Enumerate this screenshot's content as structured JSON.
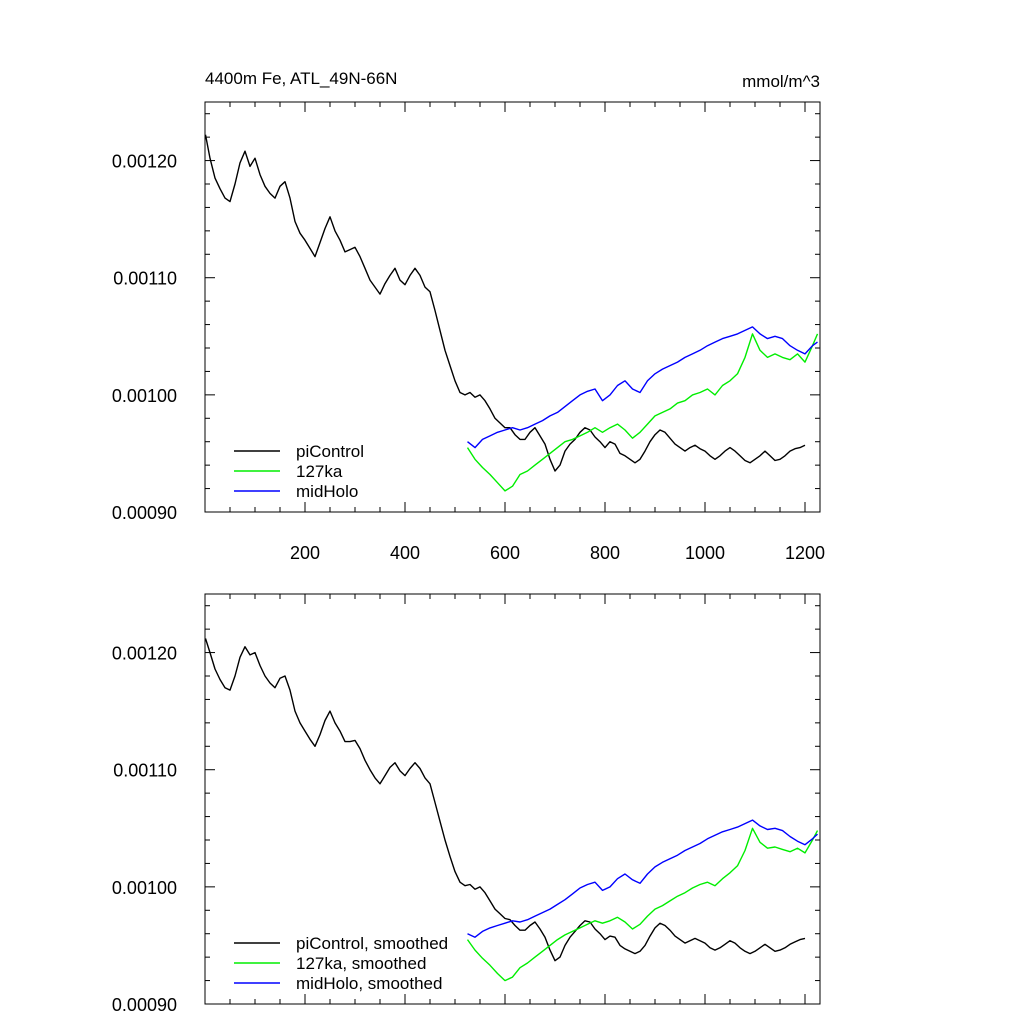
{
  "chart_data": [
    {
      "type": "line",
      "title": "4400m Fe, ATL_49N-66N",
      "units": "mmol/m^3",
      "xlim": [
        0,
        1230
      ],
      "ylim": [
        0.0009,
        0.00125
      ],
      "xticks": [
        200,
        400,
        600,
        800,
        1000,
        1200
      ],
      "xtick_labels": [
        "200",
        "400",
        "600",
        "800",
        "1000",
        "1200"
      ],
      "yticks": [
        0.0009,
        0.001,
        0.0011,
        0.0012
      ],
      "ytick_labels": [
        "0.00090",
        "0.00100",
        "0.00110",
        "0.00120"
      ],
      "legend": "bottom-left",
      "series": [
        {
          "name": "piControl",
          "color": "#000000",
          "x": [
            1,
            10,
            20,
            30,
            40,
            50,
            60,
            70,
            80,
            90,
            100,
            110,
            120,
            130,
            140,
            150,
            160,
            170,
            180,
            190,
            200,
            210,
            220,
            230,
            240,
            250,
            260,
            270,
            280,
            290,
            300,
            310,
            320,
            330,
            340,
            350,
            360,
            370,
            380,
            390,
            400,
            410,
            420,
            430,
            440,
            450,
            460,
            470,
            480,
            490,
            500,
            510,
            520,
            530,
            540,
            550,
            560,
            570,
            580,
            590,
            600,
            610,
            620,
            630,
            640,
            650,
            660,
            670,
            680,
            690,
            700,
            710,
            720,
            730,
            740,
            750,
            760,
            770,
            780,
            790,
            800,
            810,
            820,
            830,
            840,
            850,
            860,
            870,
            880,
            890,
            900,
            910,
            920,
            930,
            940,
            950,
            960,
            970,
            980,
            990,
            1000,
            1010,
            1020,
            1030,
            1040,
            1050,
            1060,
            1070,
            1080,
            1090,
            1100,
            1110,
            1120,
            1130,
            1140,
            1150,
            1160,
            1170,
            1180,
            1190,
            1200
          ],
          "values": [
            0.001222,
            0.001202,
            0.001185,
            0.001176,
            0.001168,
            0.001165,
            0.00118,
            0.001198,
            0.001208,
            0.001195,
            0.001202,
            0.001188,
            0.001178,
            0.001172,
            0.001168,
            0.001178,
            0.001182,
            0.001168,
            0.001148,
            0.001138,
            0.001132,
            0.001125,
            0.001118,
            0.00113,
            0.001142,
            0.001152,
            0.00114,
            0.001132,
            0.001122,
            0.001124,
            0.001126,
            0.001118,
            0.001108,
            0.001098,
            0.001092,
            0.001086,
            0.001095,
            0.001102,
            0.001108,
            0.001098,
            0.001094,
            0.001102,
            0.001108,
            0.001102,
            0.001092,
            0.001088,
            0.001072,
            0.001055,
            0.001038,
            0.001025,
            0.001012,
            0.001002,
            0.001,
            0.001002,
            0.000998,
            0.001,
            0.000995,
            0.000988,
            0.00098,
            0.000976,
            0.000972,
            0.000972,
            0.000966,
            0.000962,
            0.000962,
            0.000968,
            0.000972,
            0.000965,
            0.000958,
            0.000945,
            0.000935,
            0.00094,
            0.000952,
            0.000958,
            0.000962,
            0.000968,
            0.000972,
            0.00097,
            0.000964,
            0.00096,
            0.000955,
            0.00096,
            0.000958,
            0.00095,
            0.000948,
            0.000945,
            0.000942,
            0.000945,
            0.000952,
            0.00096,
            0.000966,
            0.00097,
            0.000968,
            0.000963,
            0.000958,
            0.000955,
            0.000952,
            0.000955,
            0.000957,
            0.000954,
            0.000952,
            0.000948,
            0.000945,
            0.000948,
            0.000952,
            0.000955,
            0.000952,
            0.000948,
            0.000944,
            0.000942,
            0.000945,
            0.000948,
            0.000952,
            0.000948,
            0.000944,
            0.000945,
            0.000948,
            0.000952,
            0.000954,
            0.000955,
            0.000957
          ]
        },
        {
          "name": "127ka",
          "color": "#00ee00",
          "x": [
            525,
            540,
            555,
            570,
            585,
            600,
            615,
            630,
            645,
            660,
            675,
            690,
            705,
            720,
            735,
            750,
            765,
            780,
            795,
            810,
            825,
            840,
            855,
            870,
            885,
            900,
            915,
            930,
            945,
            960,
            975,
            990,
            1005,
            1020,
            1035,
            1050,
            1065,
            1080,
            1095,
            1110,
            1125,
            1140,
            1155,
            1170,
            1185,
            1200,
            1215,
            1225
          ],
          "values": [
            0.000955,
            0.000945,
            0.000938,
            0.000932,
            0.000925,
            0.000918,
            0.000922,
            0.000932,
            0.000935,
            0.00094,
            0.000945,
            0.00095,
            0.000955,
            0.00096,
            0.000962,
            0.000965,
            0.000968,
            0.000972,
            0.000968,
            0.000972,
            0.000975,
            0.00097,
            0.000963,
            0.000968,
            0.000975,
            0.000982,
            0.000985,
            0.000988,
            0.000993,
            0.000995,
            0.001,
            0.001002,
            0.001005,
            0.001,
            0.001008,
            0.001012,
            0.001018,
            0.001032,
            0.001052,
            0.001038,
            0.001032,
            0.001035,
            0.001032,
            0.00103,
            0.001035,
            0.001028,
            0.001042,
            0.001052
          ]
        },
        {
          "name": "midHolo",
          "color": "#0000ff",
          "x": [
            525,
            540,
            555,
            570,
            585,
            600,
            615,
            630,
            645,
            660,
            675,
            690,
            705,
            720,
            735,
            750,
            765,
            780,
            795,
            810,
            825,
            840,
            855,
            870,
            885,
            900,
            915,
            930,
            945,
            960,
            975,
            990,
            1005,
            1020,
            1035,
            1050,
            1065,
            1080,
            1095,
            1110,
            1125,
            1140,
            1155,
            1170,
            1185,
            1200,
            1215,
            1225
          ],
          "values": [
            0.00096,
            0.000955,
            0.000962,
            0.000965,
            0.000968,
            0.00097,
            0.000972,
            0.00097,
            0.000972,
            0.000975,
            0.000978,
            0.000982,
            0.000985,
            0.00099,
            0.000995,
            0.001,
            0.001003,
            0.001005,
            0.000995,
            0.001,
            0.001008,
            0.001012,
            0.001005,
            0.001002,
            0.001012,
            0.001018,
            0.001022,
            0.001025,
            0.001028,
            0.001032,
            0.001035,
            0.001038,
            0.001042,
            0.001045,
            0.001048,
            0.00105,
            0.001052,
            0.001055,
            0.001058,
            0.001052,
            0.001048,
            0.00105,
            0.001048,
            0.001042,
            0.001038,
            0.001035,
            0.001042,
            0.001045
          ]
        }
      ]
    },
    {
      "type": "line",
      "xlim": [
        0,
        1230
      ],
      "ylim": [
        0.0009,
        0.00125
      ],
      "xticks": [
        200,
        400,
        600,
        800,
        1000,
        1200
      ],
      "yticks": [
        0.0009,
        0.001,
        0.0011,
        0.0012
      ],
      "ytick_labels": [
        "0.00090",
        "0.00100",
        "0.00110",
        "0.00120"
      ],
      "legend": "bottom-left",
      "series": [
        {
          "name": "piControl, smoothed",
          "color": "#000000",
          "x": [
            1,
            10,
            20,
            30,
            40,
            50,
            60,
            70,
            80,
            90,
            100,
            110,
            120,
            130,
            140,
            150,
            160,
            170,
            180,
            190,
            200,
            210,
            220,
            230,
            240,
            250,
            260,
            270,
            280,
            290,
            300,
            310,
            320,
            330,
            340,
            350,
            360,
            370,
            380,
            390,
            400,
            410,
            420,
            430,
            440,
            450,
            460,
            470,
            480,
            490,
            500,
            510,
            520,
            530,
            540,
            550,
            560,
            570,
            580,
            590,
            600,
            610,
            620,
            630,
            640,
            650,
            660,
            670,
            680,
            690,
            700,
            710,
            720,
            730,
            740,
            750,
            760,
            770,
            780,
            790,
            800,
            810,
            820,
            830,
            840,
            850,
            860,
            870,
            880,
            890,
            900,
            910,
            920,
            930,
            940,
            950,
            960,
            970,
            980,
            990,
            1000,
            1010,
            1020,
            1030,
            1040,
            1050,
            1060,
            1070,
            1080,
            1090,
            1100,
            1110,
            1120,
            1130,
            1140,
            1150,
            1160,
            1170,
            1180,
            1190,
            1200
          ],
          "values": [
            0.001212,
            0.0012,
            0.001186,
            0.001177,
            0.00117,
            0.001168,
            0.00118,
            0.001196,
            0.001205,
            0.001198,
            0.0012,
            0.001189,
            0.00118,
            0.001174,
            0.00117,
            0.001178,
            0.00118,
            0.001168,
            0.00115,
            0.00114,
            0.001133,
            0.001126,
            0.00112,
            0.00113,
            0.001142,
            0.00115,
            0.00114,
            0.001133,
            0.001124,
            0.001124,
            0.001125,
            0.001118,
            0.001108,
            0.0011,
            0.001093,
            0.001088,
            0.001095,
            0.001102,
            0.001106,
            0.001099,
            0.001095,
            0.001101,
            0.001106,
            0.001101,
            0.001093,
            0.001088,
            0.001072,
            0.001056,
            0.00104,
            0.001026,
            0.001013,
            0.001004,
            0.001001,
            0.001002,
            0.000998,
            0.001,
            0.000995,
            0.000988,
            0.000981,
            0.000977,
            0.000973,
            0.000972,
            0.000967,
            0.000963,
            0.000963,
            0.000967,
            0.00097,
            0.000964,
            0.000957,
            0.000946,
            0.000937,
            0.00094,
            0.00095,
            0.000957,
            0.000962,
            0.000967,
            0.000971,
            0.00097,
            0.000964,
            0.00096,
            0.000955,
            0.000958,
            0.000957,
            0.00095,
            0.000947,
            0.000945,
            0.000943,
            0.000945,
            0.00095,
            0.000958,
            0.000965,
            0.000969,
            0.000967,
            0.000963,
            0.000958,
            0.000955,
            0.000952,
            0.000954,
            0.000956,
            0.000954,
            0.000952,
            0.000948,
            0.000946,
            0.000948,
            0.000951,
            0.000954,
            0.000952,
            0.000948,
            0.000945,
            0.000943,
            0.000945,
            0.000948,
            0.000951,
            0.000948,
            0.000945,
            0.000946,
            0.000948,
            0.000951,
            0.000953,
            0.000955,
            0.000956
          ]
        },
        {
          "name": "127ka, smoothed",
          "color": "#00ee00",
          "x": [
            525,
            540,
            555,
            570,
            585,
            600,
            615,
            630,
            645,
            660,
            675,
            690,
            705,
            720,
            735,
            750,
            765,
            780,
            795,
            810,
            825,
            840,
            855,
            870,
            885,
            900,
            915,
            930,
            945,
            960,
            975,
            990,
            1005,
            1020,
            1035,
            1050,
            1065,
            1080,
            1095,
            1110,
            1125,
            1140,
            1155,
            1170,
            1185,
            1200,
            1215,
            1225
          ],
          "values": [
            0.000955,
            0.000946,
            0.000939,
            0.000933,
            0.000926,
            0.00092,
            0.000923,
            0.000931,
            0.000935,
            0.00094,
            0.000945,
            0.00095,
            0.000955,
            0.000959,
            0.000962,
            0.000965,
            0.000968,
            0.000971,
            0.000969,
            0.000971,
            0.000974,
            0.00097,
            0.000964,
            0.000968,
            0.000975,
            0.000981,
            0.000984,
            0.000988,
            0.000992,
            0.000995,
            0.000999,
            0.001002,
            0.001004,
            0.001001,
            0.001007,
            0.001012,
            0.001018,
            0.001031,
            0.00105,
            0.001038,
            0.001033,
            0.001034,
            0.001032,
            0.00103,
            0.001033,
            0.001029,
            0.00104,
            0.001048
          ]
        },
        {
          "name": "midHolo, smoothed",
          "color": "#0000ff",
          "x": [
            525,
            540,
            555,
            570,
            585,
            600,
            615,
            630,
            645,
            660,
            675,
            690,
            705,
            720,
            735,
            750,
            765,
            780,
            795,
            810,
            825,
            840,
            855,
            870,
            885,
            900,
            915,
            930,
            945,
            960,
            975,
            990,
            1005,
            1020,
            1035,
            1050,
            1065,
            1080,
            1095,
            1110,
            1125,
            1140,
            1155,
            1170,
            1185,
            1200,
            1215,
            1225
          ],
          "values": [
            0.00096,
            0.000957,
            0.000962,
            0.000965,
            0.000967,
            0.000969,
            0.000971,
            0.00097,
            0.000972,
            0.000975,
            0.000978,
            0.000981,
            0.000985,
            0.000989,
            0.000994,
            0.000999,
            0.001002,
            0.001004,
            0.000997,
            0.001,
            0.001007,
            0.001011,
            0.001006,
            0.001003,
            0.001011,
            0.001017,
            0.001021,
            0.001024,
            0.001027,
            0.001031,
            0.001034,
            0.001037,
            0.001041,
            0.001044,
            0.001047,
            0.001049,
            0.001051,
            0.001054,
            0.001057,
            0.001052,
            0.001049,
            0.00105,
            0.001048,
            0.001043,
            0.001039,
            0.001036,
            0.001041,
            0.001045
          ]
        }
      ]
    }
  ]
}
